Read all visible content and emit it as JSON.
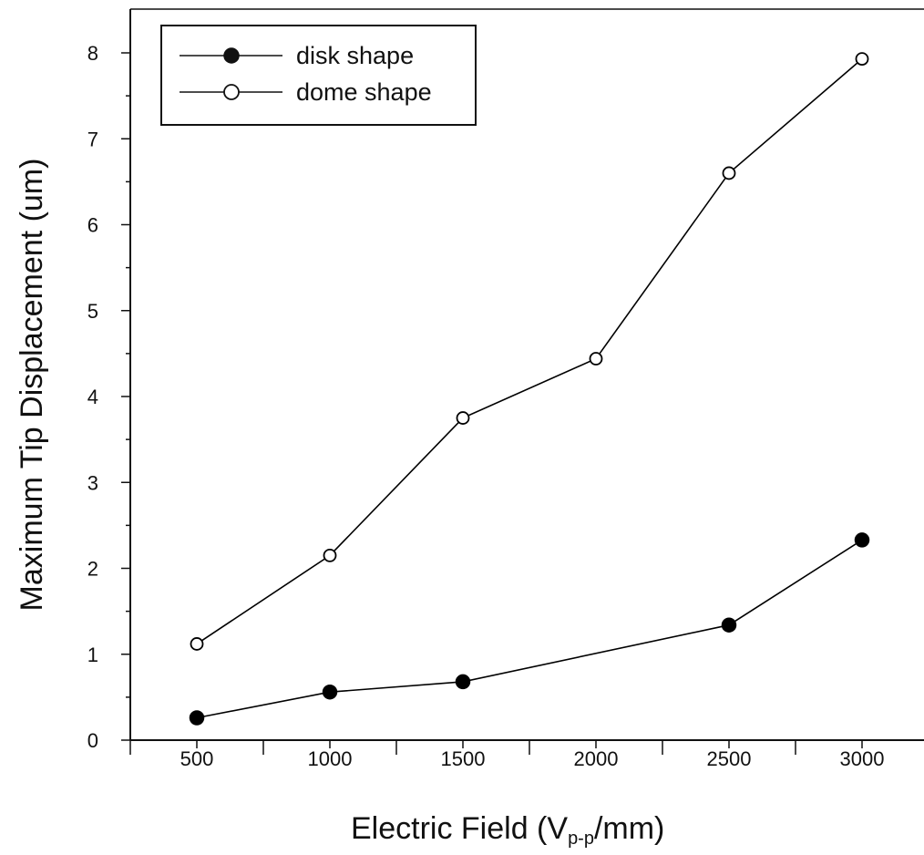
{
  "chart_data": {
    "type": "line",
    "xlabel_main": "Electric Field (V",
    "xlabel_sub": "p-p",
    "xlabel_tail": "/mm)",
    "ylabel": "Maximum Tip Displacement (um)",
    "xlim": [
      250,
      3250
    ],
    "ylim": [
      0,
      8.5
    ],
    "x_ticks": [
      500,
      1000,
      1500,
      2000,
      2500,
      3000
    ],
    "y_ticks": [
      0,
      1,
      2,
      3,
      4,
      5,
      6,
      7,
      8
    ],
    "legend_position": "top-left",
    "grid": false,
    "series": [
      {
        "name": "disk shape",
        "marker": "filled-circle",
        "color": "#000000",
        "points": [
          {
            "x": 500,
            "y": 0.26
          },
          {
            "x": 1000,
            "y": 0.56
          },
          {
            "x": 1500,
            "y": 0.68
          },
          {
            "x": 2500,
            "y": 1.34
          },
          {
            "x": 3000,
            "y": 2.33
          }
        ]
      },
      {
        "name": "dome shape",
        "marker": "open-circle",
        "color": "#000000",
        "points": [
          {
            "x": 500,
            "y": 1.12
          },
          {
            "x": 1000,
            "y": 2.15
          },
          {
            "x": 1500,
            "y": 3.75
          },
          {
            "x": 2000,
            "y": 4.44
          },
          {
            "x": 2500,
            "y": 6.6
          },
          {
            "x": 3000,
            "y": 7.93
          }
        ]
      }
    ]
  }
}
